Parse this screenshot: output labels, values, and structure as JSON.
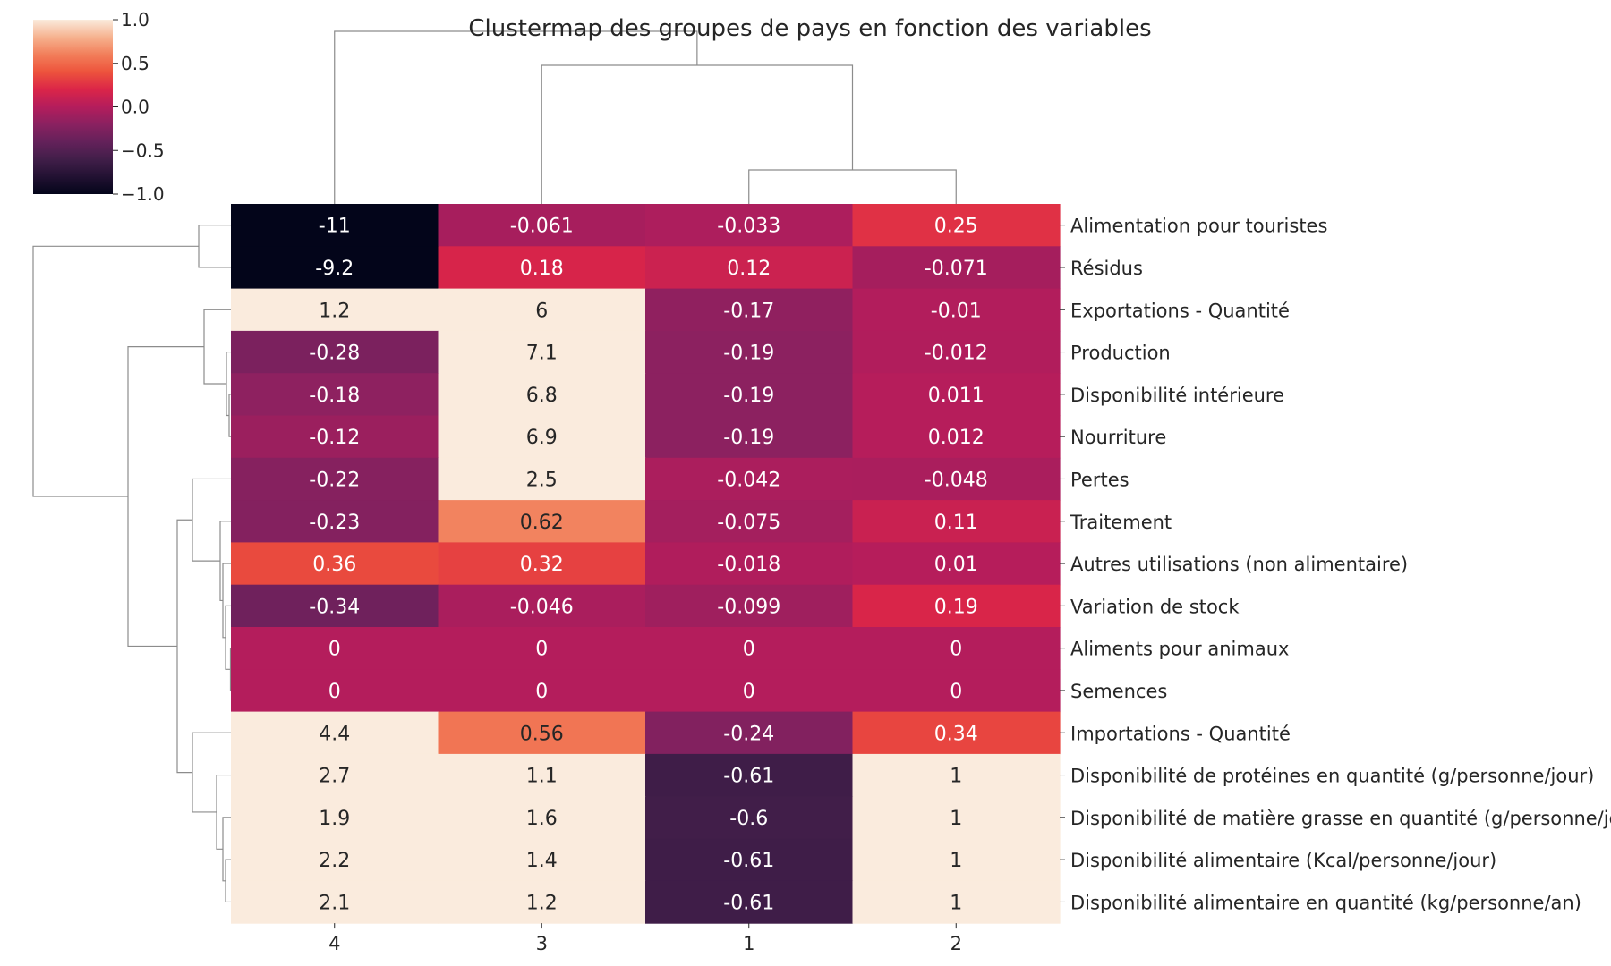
{
  "chart_data": {
    "type": "heatmap",
    "title": "Clustermap des groupes de pays en fonction des variables",
    "columns": [
      "4",
      "3",
      "1",
      "2"
    ],
    "rows": [
      "Alimentation pour touristes",
      "Résidus",
      "Exportations - Quantité",
      "Production",
      "Disponibilité intérieure",
      "Nourriture",
      "Pertes",
      "Traitement",
      "Autres utilisations (non alimentaire)",
      "Variation de stock",
      "Aliments pour animaux",
      "Semences",
      "Importations - Quantité",
      "Disponibilité de protéines en quantité (g/personne/jour)",
      "Disponibilité de matière grasse en quantité (g/personne/jour)",
      "Disponibilité alimentaire (Kcal/personne/jour)",
      "Disponibilité alimentaire en quantité (kg/personne/an)"
    ],
    "values": [
      [
        -11,
        -0.061,
        -0.033,
        0.25
      ],
      [
        -9.2,
        0.18,
        0.12,
        -0.071
      ],
      [
        1.2,
        6,
        -0.17,
        -0.01
      ],
      [
        -0.28,
        7.1,
        -0.19,
        -0.012
      ],
      [
        -0.18,
        6.8,
        -0.19,
        0.011
      ],
      [
        -0.12,
        6.9,
        -0.19,
        0.012
      ],
      [
        -0.22,
        2.5,
        -0.042,
        -0.048
      ],
      [
        -0.23,
        0.62,
        -0.075,
        0.11
      ],
      [
        0.36,
        0.32,
        -0.018,
        0.01
      ],
      [
        -0.34,
        -0.046,
        -0.099,
        0.19
      ],
      [
        0,
        0,
        0,
        0
      ],
      [
        0,
        0,
        0,
        0
      ],
      [
        4.4,
        0.56,
        -0.24,
        0.34
      ],
      [
        2.7,
        1.1,
        -0.61,
        1
      ],
      [
        1.9,
        1.6,
        -0.6,
        1
      ],
      [
        2.2,
        1.4,
        -0.61,
        1
      ],
      [
        2.1,
        1.2,
        -0.61,
        1
      ]
    ],
    "labels": [
      [
        "-11",
        "-0.061",
        "-0.033",
        "0.25"
      ],
      [
        "-9.2",
        "0.18",
        "0.12",
        "-0.071"
      ],
      [
        "1.2",
        "6",
        "-0.17",
        "-0.01"
      ],
      [
        "-0.28",
        "7.1",
        "-0.19",
        "-0.012"
      ],
      [
        "-0.18",
        "6.8",
        "-0.19",
        "0.011"
      ],
      [
        "-0.12",
        "6.9",
        "-0.19",
        "0.012"
      ],
      [
        "-0.22",
        "2.5",
        "-0.042",
        "-0.048"
      ],
      [
        "-0.23",
        "0.62",
        "-0.075",
        "0.11"
      ],
      [
        "0.36",
        "0.32",
        "-0.018",
        "0.01"
      ],
      [
        "-0.34",
        "-0.046",
        "-0.099",
        "0.19"
      ],
      [
        "0",
        "0",
        "0",
        "0"
      ],
      [
        "0",
        "0",
        "0",
        "0"
      ],
      [
        "4.4",
        "0.56",
        "-0.24",
        "0.34"
      ],
      [
        "2.7",
        "1.1",
        "-0.61",
        "1"
      ],
      [
        "1.9",
        "1.6",
        "-0.6",
        "1"
      ],
      [
        "2.2",
        "1.4",
        "-0.61",
        "1"
      ],
      [
        "2.1",
        "1.2",
        "-0.61",
        "1"
      ]
    ],
    "colorbar": {
      "vmin": -1.0,
      "vmax": 1.0,
      "ticks": [
        1.0,
        0.5,
        0.0,
        -0.5,
        -1.0
      ],
      "tick_labels": [
        "1.0",
        "0.5",
        "0.0",
        "−0.5",
        "−1.0"
      ],
      "colormap": "rocket"
    },
    "col_dendrogram": "((4),(3,(1,2)))",
    "row_dendrogram": "clustered",
    "grid": false
  }
}
